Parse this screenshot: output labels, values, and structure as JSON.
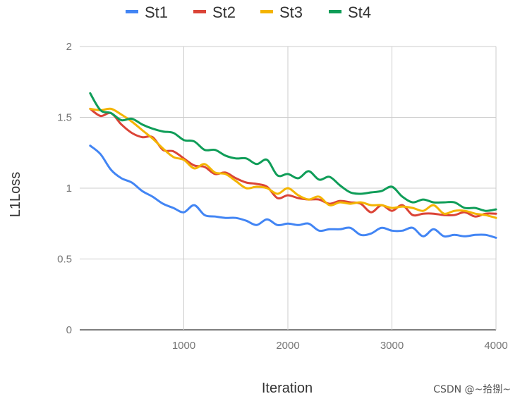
{
  "chart_data": {
    "type": "line",
    "title": "",
    "xlabel": "Iteration",
    "ylabel": "L1Loss",
    "xlim": [
      0,
      4000
    ],
    "ylim": [
      0,
      2
    ],
    "x_ticks": [
      "1000",
      "2000",
      "3000",
      "4000"
    ],
    "y_ticks": [
      "0",
      "0.5",
      "1",
      "1.5",
      "2"
    ],
    "grid": true,
    "legend_position": "top",
    "x": [
      100,
      200,
      300,
      400,
      500,
      600,
      700,
      800,
      900,
      1000,
      1100,
      1200,
      1300,
      1400,
      1500,
      1600,
      1700,
      1800,
      1900,
      2000,
      2100,
      2200,
      2300,
      2400,
      2500,
      2600,
      2700,
      2800,
      2900,
      3000,
      3100,
      3200,
      3300,
      3400,
      3500,
      3600,
      3700,
      3800,
      3900,
      4000
    ],
    "series": [
      {
        "name": "St1",
        "color": "#4285F4",
        "values": [
          1.3,
          1.24,
          1.13,
          1.07,
          1.04,
          0.98,
          0.94,
          0.89,
          0.86,
          0.83,
          0.88,
          0.81,
          0.8,
          0.79,
          0.79,
          0.77,
          0.74,
          0.78,
          0.74,
          0.75,
          0.74,
          0.75,
          0.7,
          0.71,
          0.71,
          0.72,
          0.67,
          0.68,
          0.72,
          0.7,
          0.7,
          0.72,
          0.66,
          0.71,
          0.66,
          0.67,
          0.66,
          0.67,
          0.67,
          0.65
        ]
      },
      {
        "name": "St2",
        "color": "#DB4437",
        "values": [
          1.56,
          1.51,
          1.53,
          1.45,
          1.39,
          1.36,
          1.36,
          1.27,
          1.26,
          1.21,
          1.16,
          1.15,
          1.1,
          1.11,
          1.07,
          1.04,
          1.03,
          1.01,
          0.93,
          0.95,
          0.93,
          0.92,
          0.92,
          0.89,
          0.91,
          0.9,
          0.89,
          0.83,
          0.88,
          0.84,
          0.88,
          0.81,
          0.82,
          0.82,
          0.81,
          0.81,
          0.83,
          0.8,
          0.82,
          0.82
        ]
      },
      {
        "name": "St3",
        "color": "#F4B400",
        "values": [
          1.56,
          1.55,
          1.56,
          1.52,
          1.47,
          1.41,
          1.35,
          1.28,
          1.22,
          1.2,
          1.14,
          1.17,
          1.11,
          1.1,
          1.05,
          1.0,
          1.01,
          1.0,
          0.96,
          1.0,
          0.95,
          0.92,
          0.94,
          0.88,
          0.9,
          0.89,
          0.9,
          0.88,
          0.88,
          0.86,
          0.87,
          0.86,
          0.84,
          0.88,
          0.82,
          0.84,
          0.84,
          0.82,
          0.81,
          0.79
        ]
      },
      {
        "name": "St4",
        "color": "#0F9D58",
        "values": [
          1.67,
          1.55,
          1.53,
          1.48,
          1.49,
          1.45,
          1.42,
          1.4,
          1.39,
          1.34,
          1.33,
          1.27,
          1.27,
          1.23,
          1.21,
          1.21,
          1.17,
          1.2,
          1.09,
          1.1,
          1.07,
          1.12,
          1.06,
          1.08,
          1.02,
          0.97,
          0.96,
          0.97,
          0.98,
          1.01,
          0.94,
          0.9,
          0.92,
          0.9,
          0.9,
          0.9,
          0.86,
          0.86,
          0.84,
          0.85
        ]
      }
    ]
  },
  "watermark": "CSDN @~拾捌~"
}
